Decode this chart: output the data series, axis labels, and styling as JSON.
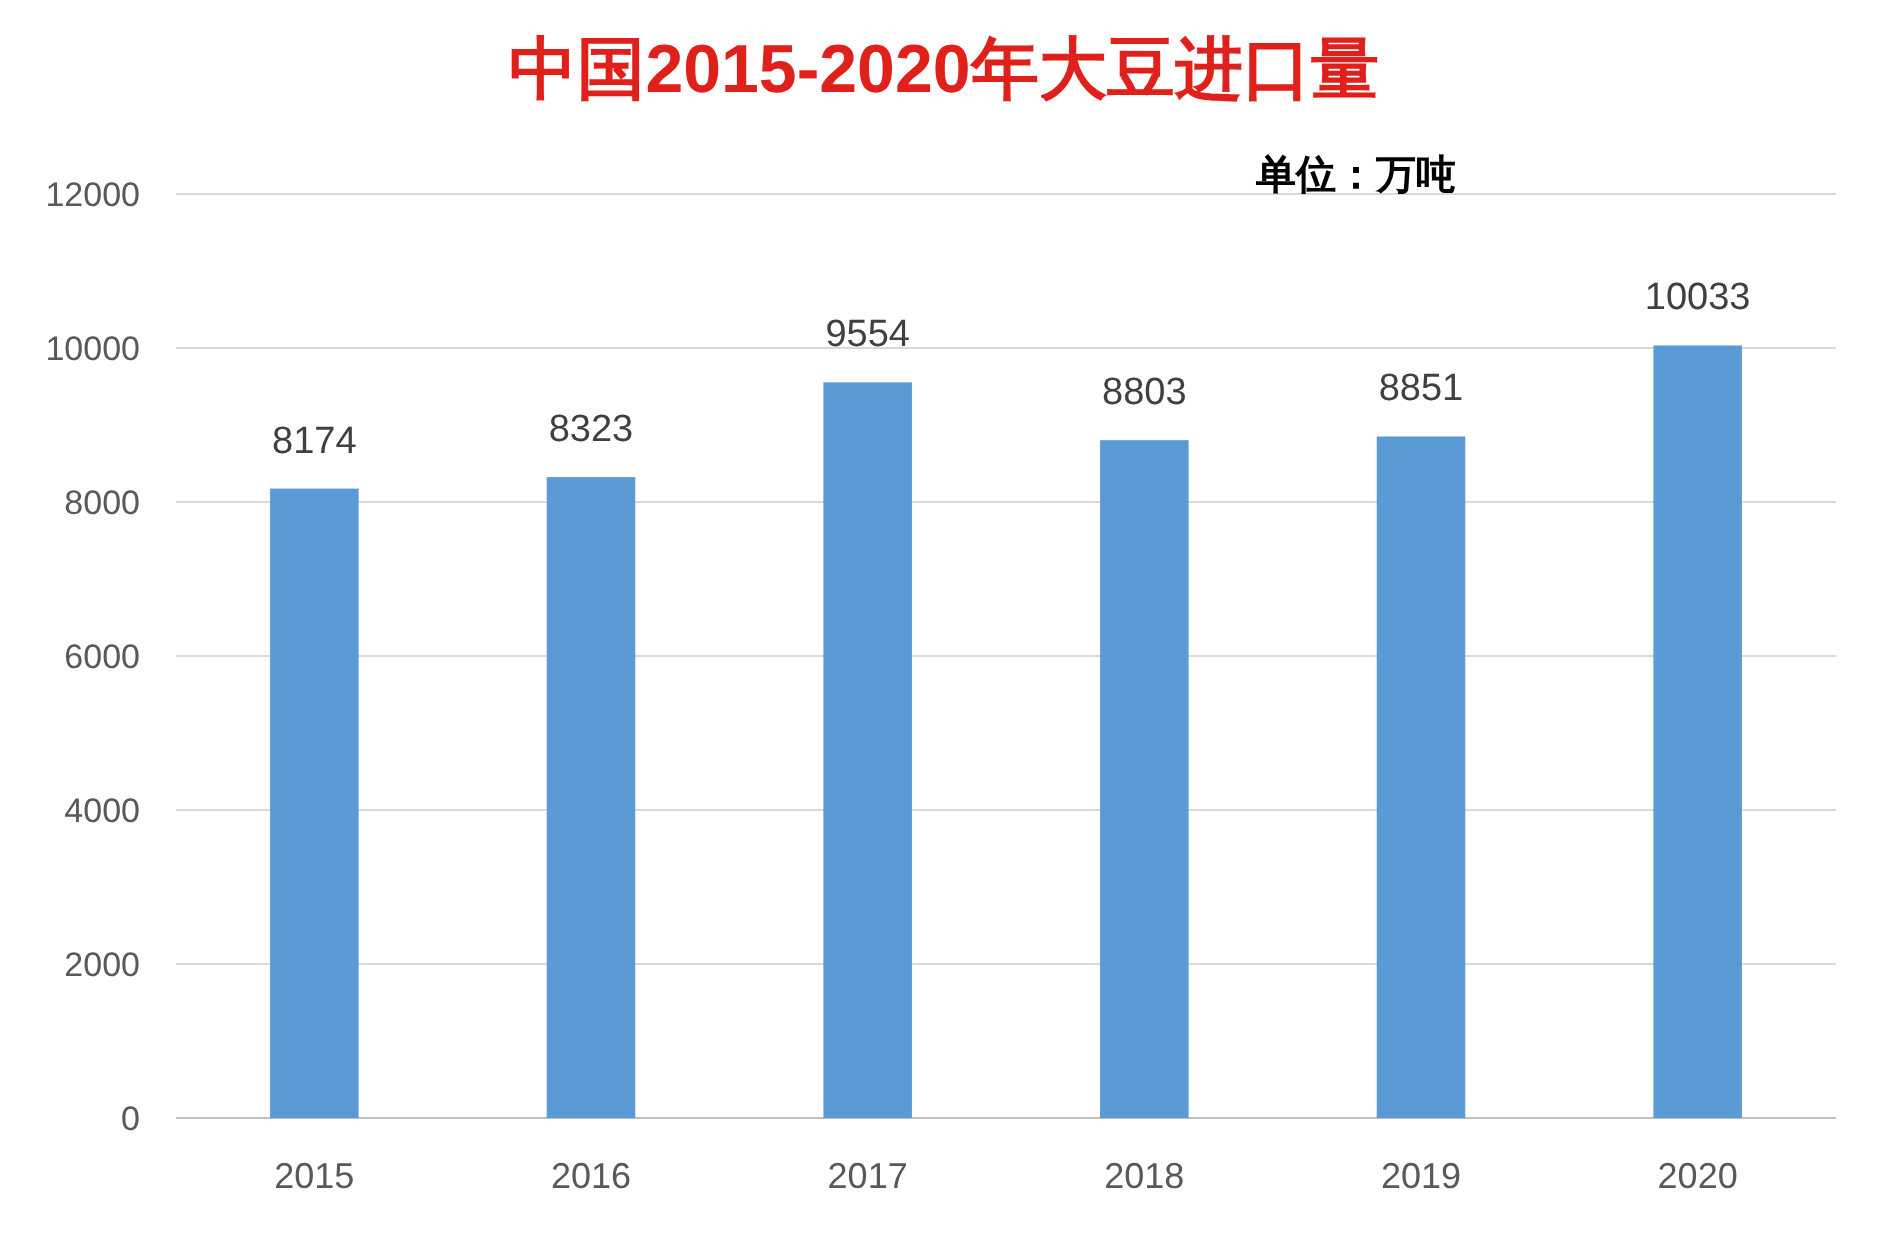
{
  "chart_data": {
    "type": "bar",
    "title": "中国2015-2020年大豆进口量",
    "annotations": [
      "单位：万吨"
    ],
    "categories": [
      "2015",
      "2016",
      "2017",
      "2018",
      "2019",
      "2020"
    ],
    "values": [
      8174,
      8323,
      9554,
      8803,
      8851,
      10033
    ],
    "color": "#5b9bd5",
    "ylim": [
      0,
      12000
    ],
    "yticks": [
      0,
      2000,
      4000,
      6000,
      8000,
      10000,
      12000
    ],
    "grid": true,
    "data_labels": true
  }
}
